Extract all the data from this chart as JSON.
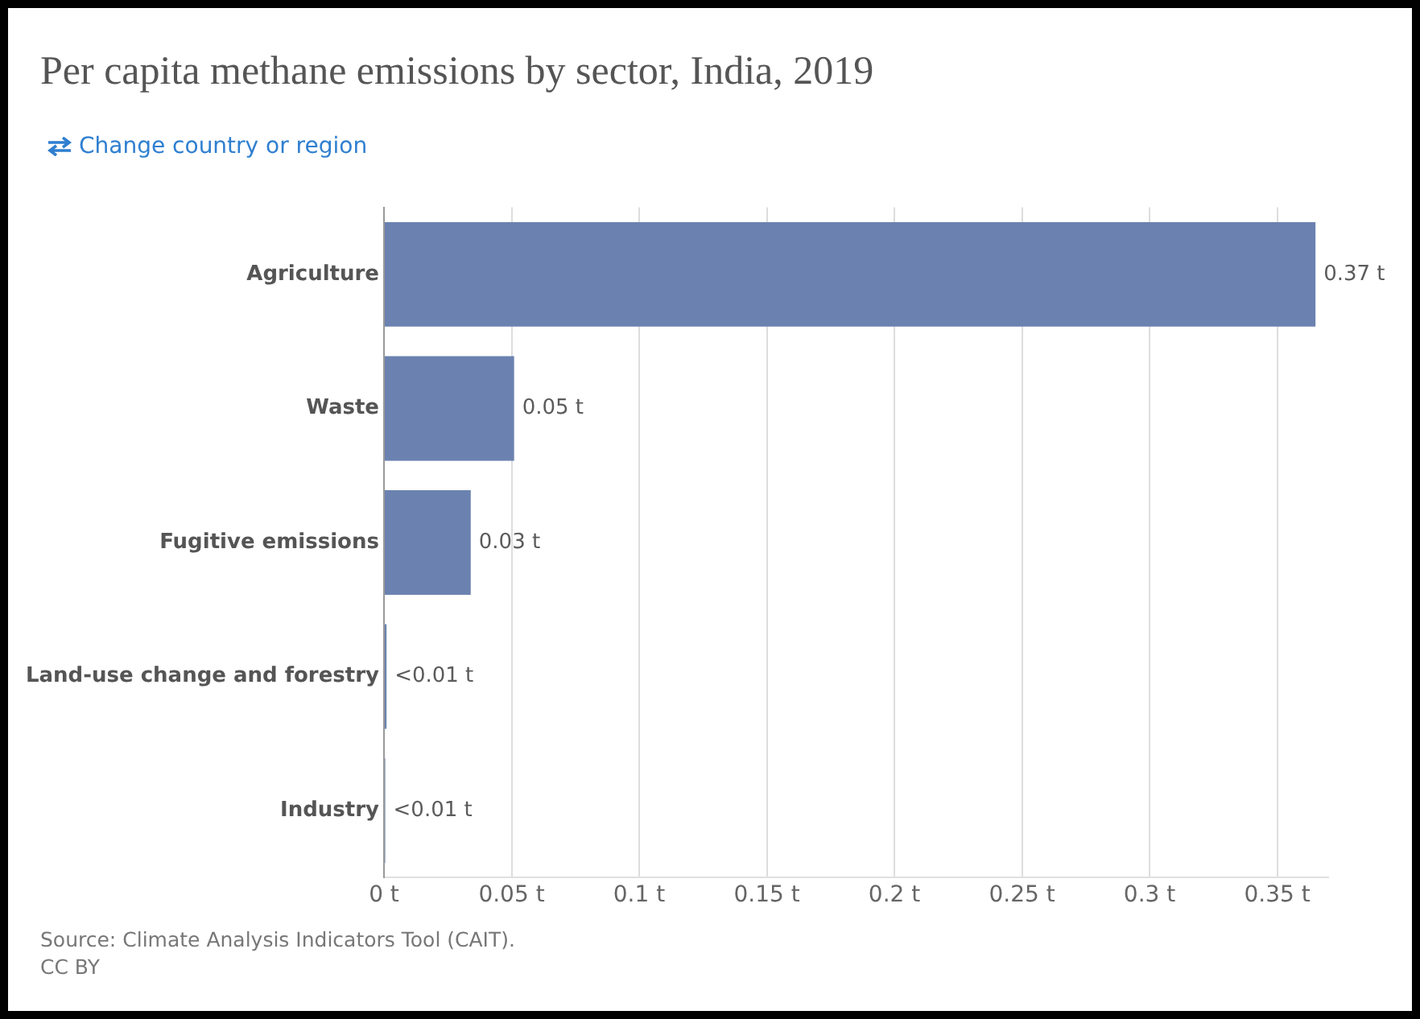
{
  "chart_data": {
    "type": "bar",
    "orientation": "horizontal",
    "title": "Per capita methane emissions by sector, India, 2019",
    "categories": [
      "Agriculture",
      "Waste",
      "Fugitive emissions",
      "Land-use change and forestry",
      "Industry"
    ],
    "values": [
      0.365,
      0.051,
      0.034,
      0.001,
      0.0005
    ],
    "value_labels": [
      "0.37 t",
      "0.05 t",
      "0.03 t",
      "<0.01 t",
      "<0.01 t"
    ],
    "color": "#6b82b0",
    "xlim": [
      0,
      0.37
    ],
    "xticks": [
      {
        "value": 0,
        "label": "0 t"
      },
      {
        "value": 0.05,
        "label": "0.05 t"
      },
      {
        "value": 0.1,
        "label": "0.1 t"
      },
      {
        "value": 0.15,
        "label": "0.15 t"
      },
      {
        "value": 0.2,
        "label": "0.2 t"
      },
      {
        "value": 0.25,
        "label": "0.25 t"
      },
      {
        "value": 0.3,
        "label": "0.3 t"
      },
      {
        "value": 0.35,
        "label": "0.35 t"
      }
    ],
    "grid": "x",
    "legend": false,
    "annotations": [
      "Change country or region",
      "Source: Climate Analysis Indicators Tool (CAIT).",
      "CC BY"
    ]
  }
}
